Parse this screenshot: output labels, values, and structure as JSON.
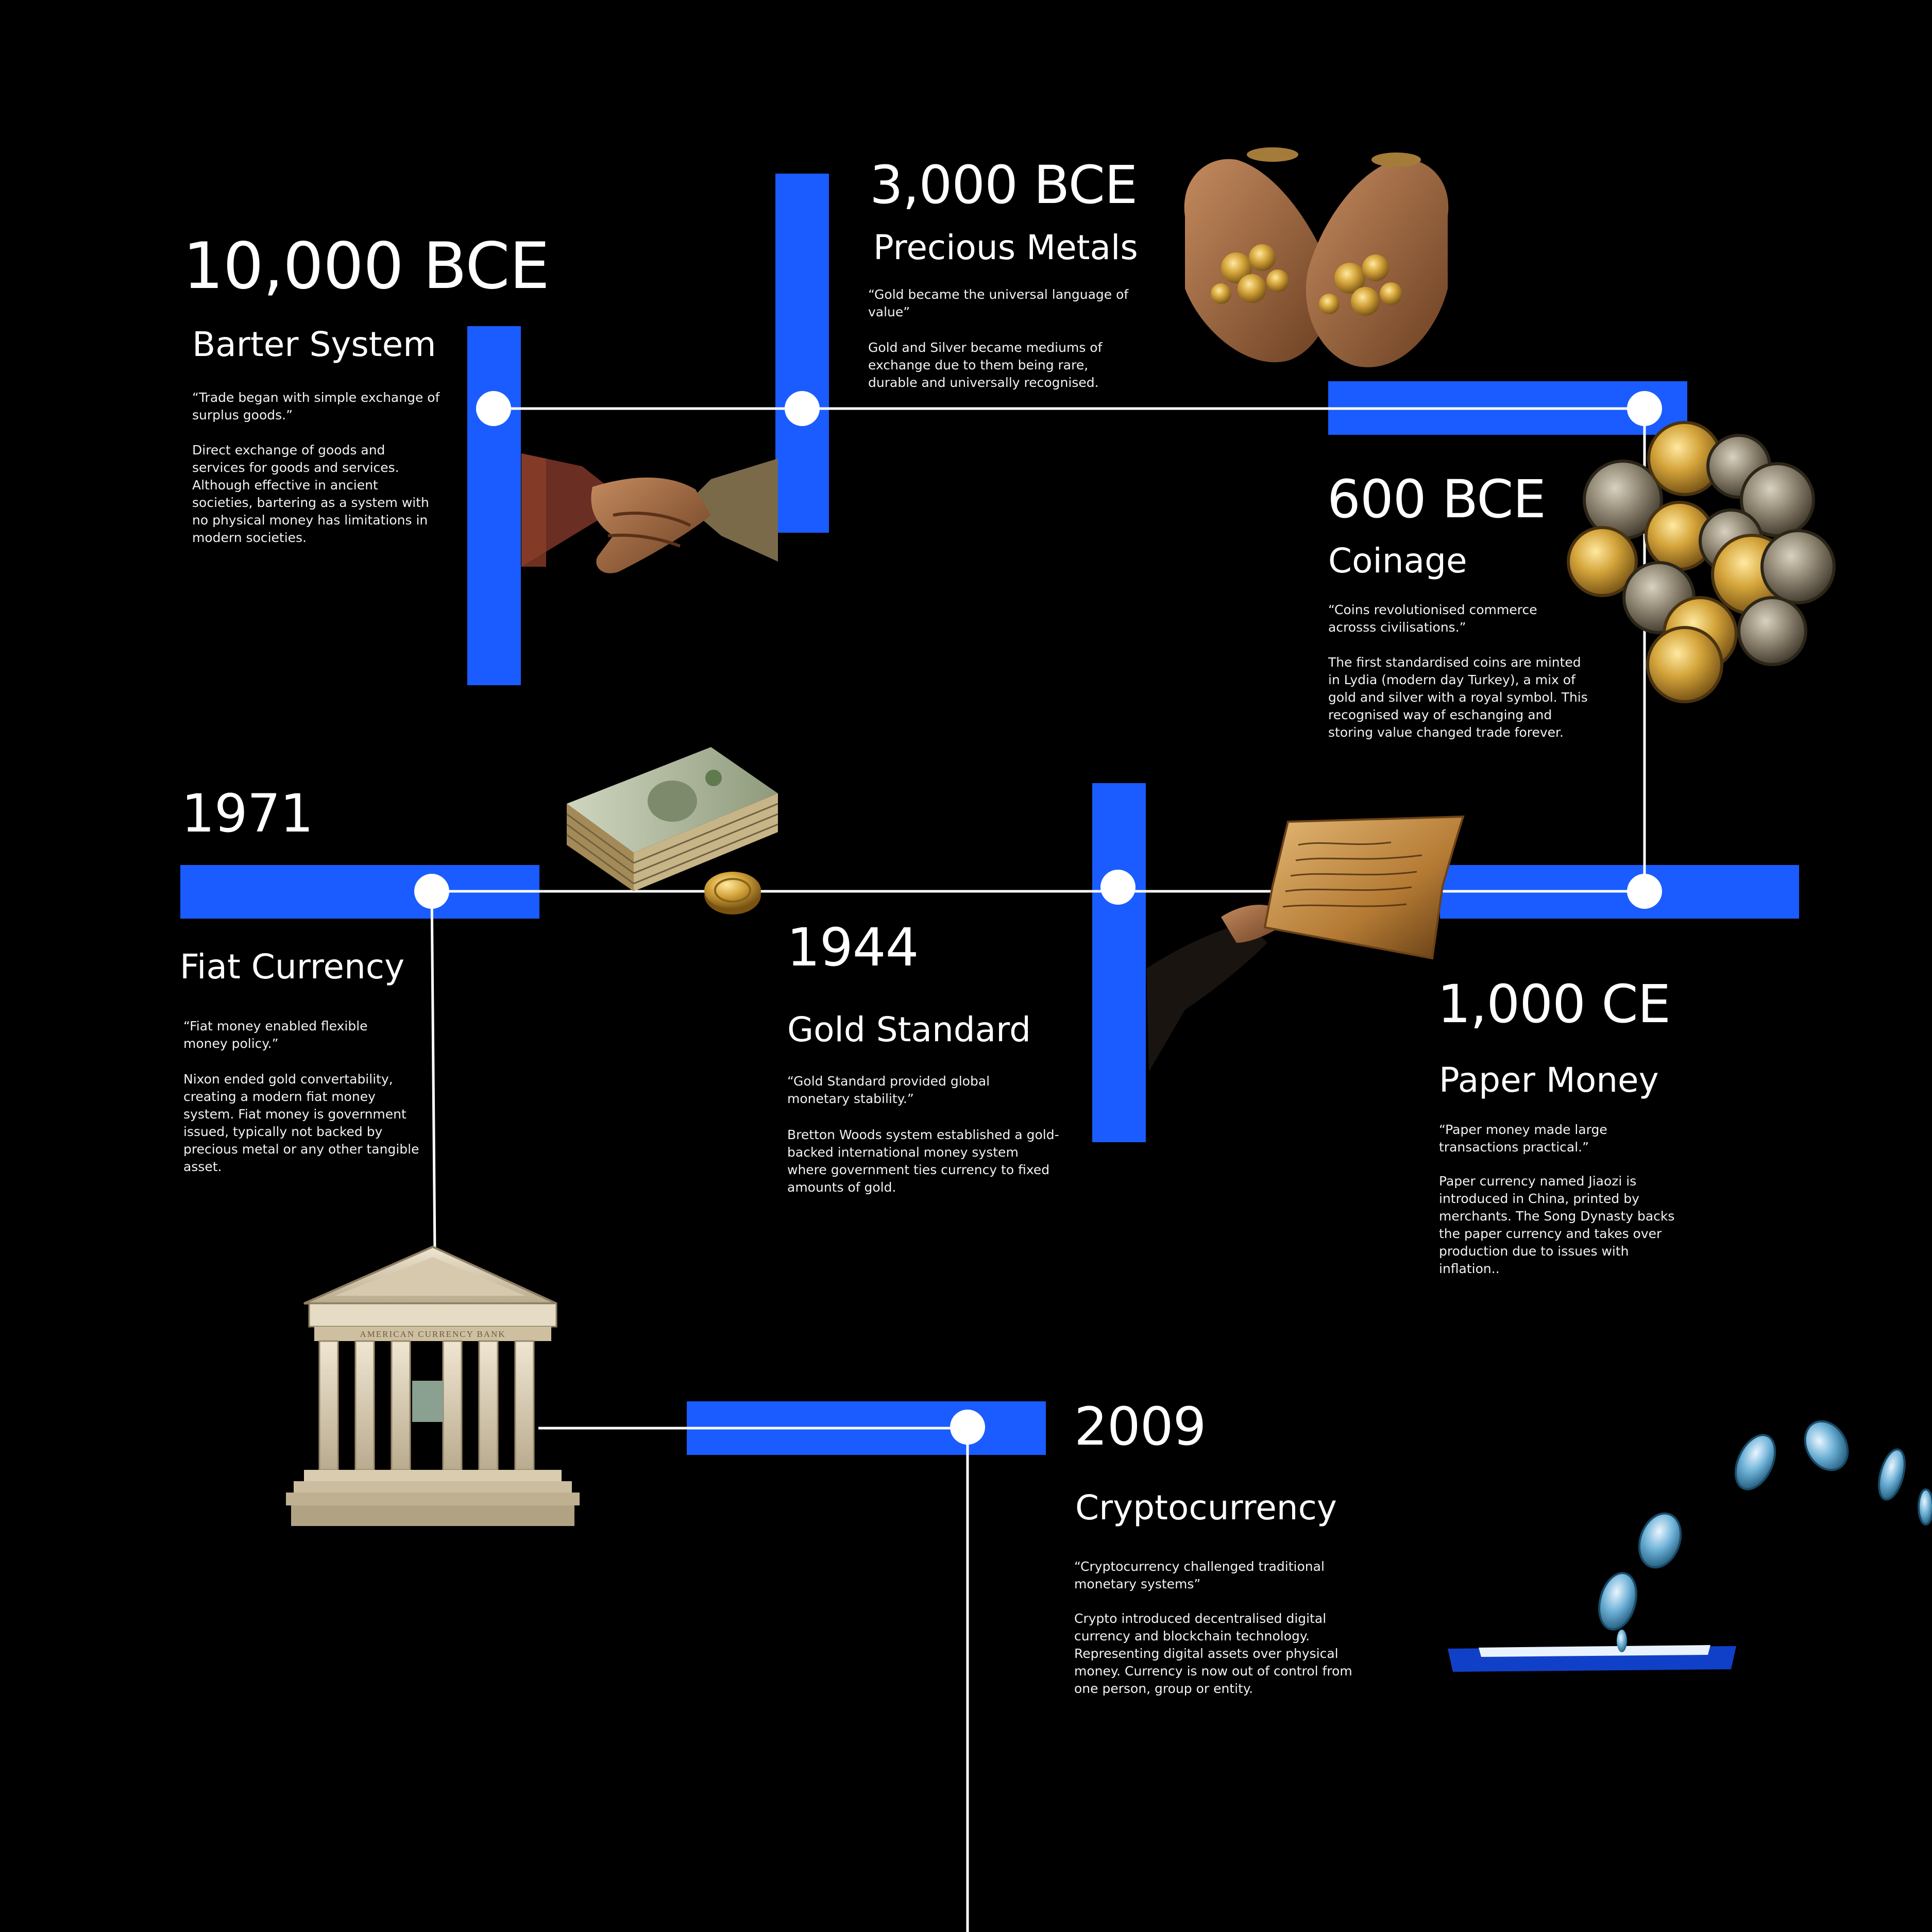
{
  "colors": {
    "background": "#000000",
    "accent_blue": "#1a5cff",
    "line": "#ffffff",
    "node": "#ffffff"
  },
  "eras": [
    {
      "id": "barter",
      "year": "10,000 BCE",
      "title": "Barter System",
      "quote": "“Trade began with simple exchange of surplus goods.”",
      "description": "Direct exchange of goods and services for goods and services. Although effective in ancient societies, bartering as a system with no physical money has limitations in modern societies.",
      "illustration": "handshake"
    },
    {
      "id": "precious-metals",
      "year": "3,000 BCE",
      "title": "Precious Metals",
      "quote": "“Gold became the universal language of value”",
      "description": "Gold and Silver became mediums of exchange due to them being rare, durable and universally recognised.",
      "illustration": "hands-holding-gold"
    },
    {
      "id": "coinage",
      "year": "600 BCE",
      "title": "Coinage",
      "quote": "“Coins revolutionised commerce acrosss civilisations.”",
      "description": "The first standardised coins are minted in Lydia (modern day Turkey), a mix of gold and silver with a royal symbol. This recognised way of eschanging and storing value changed trade forever.",
      "illustration": "coin-pile"
    },
    {
      "id": "paper-money",
      "year": "1,000 CE",
      "title": "Paper Money",
      "quote": "“Paper money made large transactions practical.”",
      "description": "Paper currency named Jiaozi is introduced in China, printed by merchants. The Song Dynasty backs the paper currency and takes over production due to issues with inflation..",
      "illustration": "hand-holding-parchment"
    },
    {
      "id": "gold-standard",
      "year": "1944",
      "title": "Gold Standard",
      "quote": "“Gold Standard provided global monetary stability.”",
      "description": "Bretton Woods system established a gold-backed international money system where government ties currency to fixed amounts of gold.",
      "illustration": "gold-coin"
    },
    {
      "id": "fiat",
      "year": "1971",
      "title": "Fiat Currency",
      "quote": "“Fiat money enabled flexible money policy.”",
      "description": "Nixon ended gold convertability, creating a modern fiat money system. Fiat money is government issued, typically not backed by precious metal or any other tangible asset.",
      "illustration": "dollar-stack"
    },
    {
      "id": "crypto",
      "year": "2009",
      "title": "Cryptocurrency",
      "quote": "“Cryptocurrency challenged traditional monetary systems”",
      "description": "Crypto introduced decentralised digital currency and blockchain technology. Representing digital assets over physical money. Currency is now out of control from one person, group or entity.",
      "illustration": "phone-with-coins"
    }
  ],
  "bank": {
    "inscription": "AMERICAN CURRENCY BANK",
    "illustration": "bank-building"
  }
}
